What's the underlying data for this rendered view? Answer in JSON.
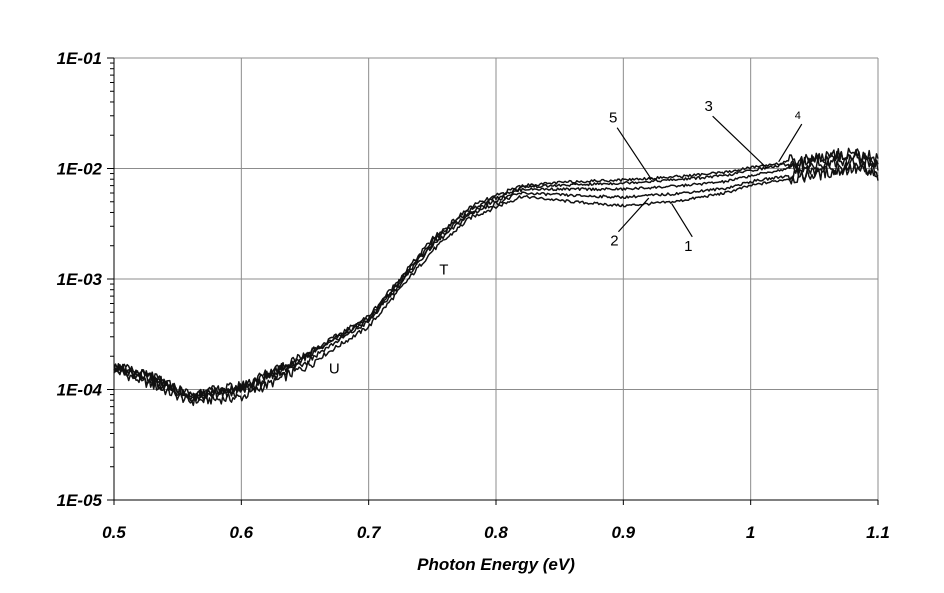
{
  "chart_data": {
    "type": "line",
    "title": "",
    "xlabel": "Photon Energy (eV)",
    "ylabel": "",
    "xlim": [
      0.5,
      1.1
    ],
    "ylim": [
      1e-05,
      0.1
    ],
    "yscale": "log",
    "grid": true,
    "x_ticks": [
      {
        "value": 0.5,
        "label": "0.5"
      },
      {
        "value": 0.6,
        "label": "0.6"
      },
      {
        "value": 0.7,
        "label": "0.7"
      },
      {
        "value": 0.8,
        "label": "0.8"
      },
      {
        "value": 0.9,
        "label": "0.9"
      },
      {
        "value": 1.0,
        "label": "1"
      },
      {
        "value": 1.1,
        "label": "1.1"
      }
    ],
    "y_ticks": [
      {
        "value": 1e-05,
        "label": "1E-05"
      },
      {
        "value": 0.0001,
        "label": "1E-04"
      },
      {
        "value": 0.001,
        "label": "1E-03"
      },
      {
        "value": 0.01,
        "label": "1E-02"
      },
      {
        "value": 0.1,
        "label": "1E-01"
      }
    ],
    "series": [
      {
        "name": "1",
        "x": [
          0.5,
          0.53,
          0.56,
          0.6,
          0.65,
          0.7,
          0.75,
          0.78,
          0.82,
          0.86,
          0.9,
          0.94,
          0.98,
          1.0,
          1.04,
          1.08,
          1.1
        ],
        "values": [
          0.00015,
          0.00011,
          7.8e-05,
          8.5e-05,
          0.00016,
          0.00037,
          0.0018,
          0.0036,
          0.0056,
          0.005,
          0.0046,
          0.005,
          0.006,
          0.007,
          0.0085,
          0.01,
          0.0085
        ]
      },
      {
        "name": "2",
        "x": [
          0.5,
          0.53,
          0.56,
          0.6,
          0.65,
          0.7,
          0.75,
          0.78,
          0.82,
          0.86,
          0.9,
          0.94,
          0.98,
          1.0,
          1.04,
          1.08,
          1.1
        ],
        "values": [
          0.00016,
          0.00012,
          8.3e-05,
          9.5e-05,
          0.00018,
          0.00041,
          0.002,
          0.0039,
          0.006,
          0.0057,
          0.0055,
          0.0059,
          0.0066,
          0.0076,
          0.009,
          0.0108,
          0.0092
        ]
      },
      {
        "name": "3",
        "x": [
          0.5,
          0.53,
          0.56,
          0.6,
          0.65,
          0.7,
          0.75,
          0.78,
          0.82,
          0.86,
          0.9,
          0.94,
          0.98,
          1.0,
          1.04,
          1.08,
          1.1
        ],
        "values": [
          0.000155,
          0.000125,
          8.5e-05,
          0.0001,
          0.00019,
          0.00043,
          0.0021,
          0.0041,
          0.0065,
          0.0065,
          0.0065,
          0.0069,
          0.0076,
          0.0086,
          0.0105,
          0.0125,
          0.0105
        ]
      },
      {
        "name": "4",
        "x": [
          0.5,
          0.53,
          0.56,
          0.6,
          0.65,
          0.7,
          0.75,
          0.78,
          0.82,
          0.86,
          0.9,
          0.94,
          0.98,
          1.0,
          1.04,
          1.08,
          1.1
        ],
        "values": [
          0.00016,
          0.00013,
          8.8e-05,
          0.000105,
          0.0002,
          0.00044,
          0.0022,
          0.0043,
          0.0068,
          0.0071,
          0.0074,
          0.0079,
          0.0086,
          0.0096,
          0.0115,
          0.0135,
          0.0112
        ]
      },
      {
        "name": "5",
        "x": [
          0.5,
          0.53,
          0.56,
          0.6,
          0.65,
          0.7,
          0.75,
          0.78,
          0.82,
          0.86,
          0.9,
          0.94,
          0.98,
          1.0,
          1.04,
          1.08,
          1.1
        ],
        "values": [
          0.000165,
          0.00013,
          9e-05,
          0.000108,
          0.000205,
          0.00046,
          0.0023,
          0.0045,
          0.007,
          0.0076,
          0.0079,
          0.0084,
          0.0092,
          0.0102,
          0.012,
          0.014,
          0.012
        ]
      }
    ],
    "annotations": [
      {
        "text": "5",
        "x": 0.892,
        "y": 0.026,
        "target_x": 0.922,
        "target_y": 0.008
      },
      {
        "text": "3",
        "x": 0.967,
        "y": 0.033,
        "target_x": 1.013,
        "target_y": 0.01
      },
      {
        "text": "4",
        "x": 1.037,
        "y": 0.028,
        "target_x": 1.022,
        "target_y": 0.0115
      },
      {
        "text": "2",
        "x": 0.893,
        "y": 0.002,
        "target_x": 0.92,
        "target_y": 0.0054
      },
      {
        "text": "1",
        "x": 0.951,
        "y": 0.0018,
        "target_x": 0.938,
        "target_y": 0.0048
      },
      {
        "text": "T",
        "x": 0.759,
        "y": 0.0011,
        "target_x": null,
        "target_y": null
      },
      {
        "text": "U",
        "x": 0.673,
        "y": 0.00014,
        "target_x": null,
        "target_y": null
      }
    ]
  }
}
